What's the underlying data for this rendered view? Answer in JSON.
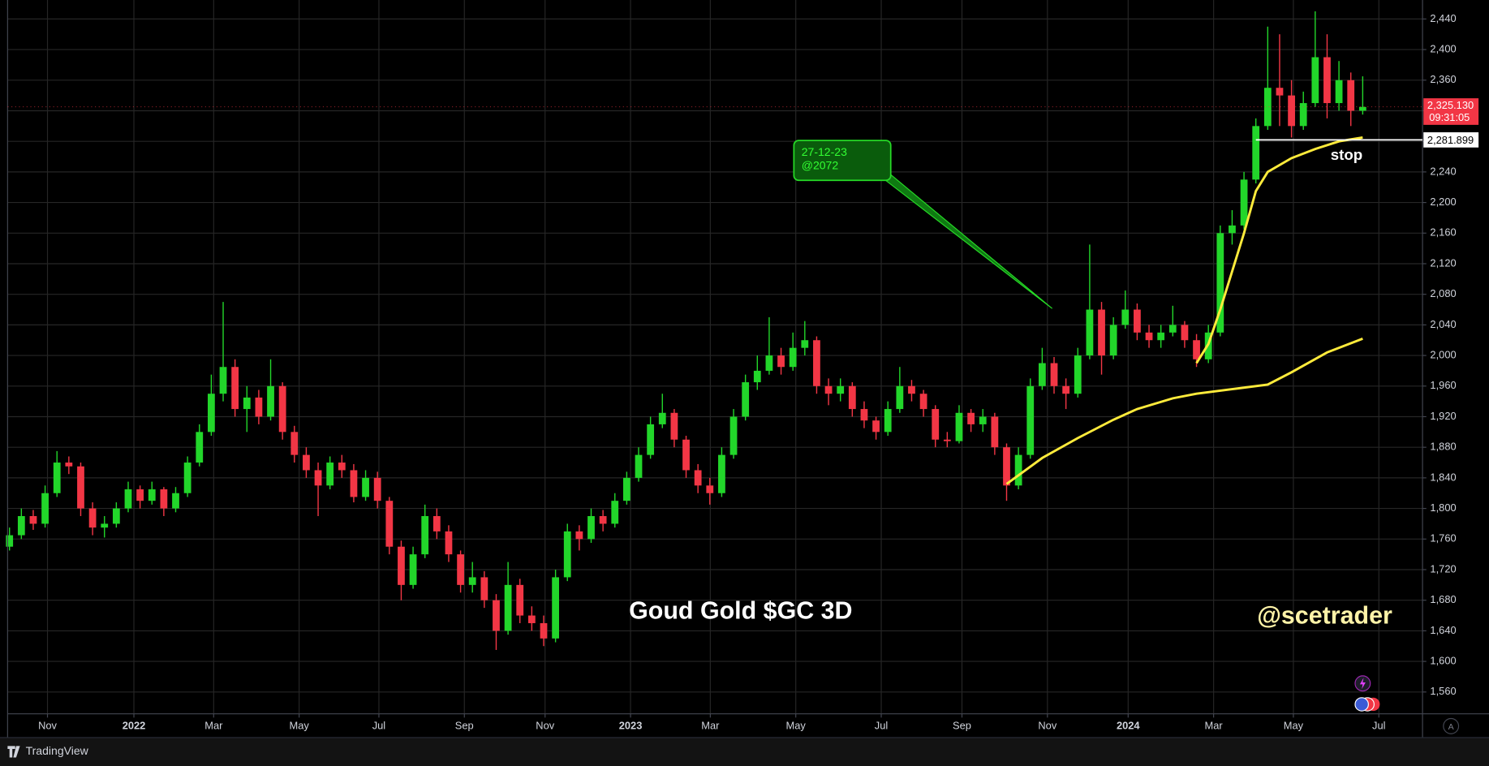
{
  "chart_data": {
    "type": "candlestick",
    "title": "Goud Gold $GC 3D",
    "watermark": "@scetrader",
    "xlim": [
      -0.16,
      119.04
    ],
    "ylim": [
      1531.5,
      2464.8
    ],
    "xticks": [
      {
        "value": 3.2,
        "label": "Nov"
      },
      {
        "value": 10.48,
        "label": "2022"
      },
      {
        "value": 17.2,
        "label": "Mar"
      },
      {
        "value": 24.4,
        "label": "May"
      },
      {
        "value": 31.12,
        "label": "Jul"
      },
      {
        "value": 38.32,
        "label": "Sep"
      },
      {
        "value": 45.12,
        "label": "Nov"
      },
      {
        "value": 52.32,
        "label": "2023"
      },
      {
        "value": 59.04,
        "label": "Mar"
      },
      {
        "value": 66.24,
        "label": "May"
      },
      {
        "value": 73.44,
        "label": "Jul"
      },
      {
        "value": 80.24,
        "label": "Sep"
      },
      {
        "value": 87.44,
        "label": "Nov"
      },
      {
        "value": 94.24,
        "label": "2024"
      },
      {
        "value": 101.44,
        "label": "Mar"
      },
      {
        "value": 108.16,
        "label": "May"
      },
      {
        "value": 115.36,
        "label": "Jul"
      }
    ],
    "yticks": [
      {
        "value": 1560,
        "label": "1,560"
      },
      {
        "value": 1600,
        "label": "1,600"
      },
      {
        "value": 1640,
        "label": "1,640"
      },
      {
        "value": 1680,
        "label": "1,680"
      },
      {
        "value": 1720,
        "label": "1,720"
      },
      {
        "value": 1760,
        "label": "1,760"
      },
      {
        "value": 1800,
        "label": "1,800"
      },
      {
        "value": 1840,
        "label": "1,840"
      },
      {
        "value": 1880,
        "label": "1,880"
      },
      {
        "value": 1920,
        "label": "1,920"
      },
      {
        "value": 1960,
        "label": "1,960"
      },
      {
        "value": 2000,
        "label": "2,000"
      },
      {
        "value": 2040,
        "label": "2,040"
      },
      {
        "value": 2080,
        "label": "2,080"
      },
      {
        "value": 2120,
        "label": "2,120"
      },
      {
        "value": 2160,
        "label": "2,160"
      },
      {
        "value": 2200,
        "label": "2,200"
      },
      {
        "value": 2240,
        "label": "2,240"
      },
      {
        "value": 2280,
        "label": "2,280"
      },
      {
        "value": 2320,
        "label": "2,320"
      },
      {
        "value": 2360,
        "label": "2,360"
      },
      {
        "value": 2400,
        "label": "2,400"
      },
      {
        "value": 2440,
        "label": "2,440"
      }
    ],
    "grid": true,
    "up_color": "#22d62a",
    "down_color": "#f23645",
    "x": [
      0,
      1,
      2,
      3,
      4,
      5,
      6,
      7,
      8,
      9,
      10,
      11,
      12,
      13,
      14,
      15,
      16,
      17,
      18,
      19,
      20,
      21,
      22,
      23,
      24,
      25,
      26,
      27,
      28,
      29,
      30,
      31,
      32,
      33,
      34,
      35,
      36,
      37,
      38,
      39,
      40,
      41,
      42,
      43,
      44,
      45,
      46,
      47,
      48,
      49,
      50,
      51,
      52,
      53,
      54,
      55,
      56,
      57,
      58,
      59,
      60,
      61,
      62,
      63,
      64,
      65,
      66,
      67,
      68,
      69,
      70,
      71,
      72,
      73,
      74,
      75,
      76,
      77,
      78,
      79,
      80,
      81,
      82,
      83,
      84,
      85,
      86,
      87,
      88,
      89,
      90,
      91,
      92,
      93,
      94,
      95,
      96,
      97,
      98,
      99,
      100,
      101,
      102,
      103,
      104,
      105,
      106,
      107,
      108,
      109,
      110,
      111,
      112,
      113,
      114
    ],
    "ohlc": [
      [
        1750,
        1775,
        1745,
        1765
      ],
      [
        1765,
        1800,
        1760,
        1790
      ],
      [
        1790,
        1798,
        1772,
        1780
      ],
      [
        1780,
        1830,
        1775,
        1820
      ],
      [
        1820,
        1875,
        1815,
        1860
      ],
      [
        1860,
        1868,
        1845,
        1855
      ],
      [
        1855,
        1860,
        1790,
        1800
      ],
      [
        1800,
        1808,
        1765,
        1775
      ],
      [
        1775,
        1790,
        1762,
        1780
      ],
      [
        1780,
        1808,
        1775,
        1800
      ],
      [
        1800,
        1835,
        1795,
        1825
      ],
      [
        1825,
        1830,
        1800,
        1810
      ],
      [
        1810,
        1835,
        1805,
        1825
      ],
      [
        1825,
        1828,
        1790,
        1800
      ],
      [
        1800,
        1828,
        1795,
        1820
      ],
      [
        1820,
        1868,
        1815,
        1860
      ],
      [
        1860,
        1910,
        1855,
        1900
      ],
      [
        1900,
        1975,
        1895,
        1950
      ],
      [
        1950,
        2070,
        1940,
        1985
      ],
      [
        1985,
        1995,
        1920,
        1930
      ],
      [
        1930,
        1960,
        1900,
        1945
      ],
      [
        1945,
        1955,
        1910,
        1920
      ],
      [
        1920,
        1995,
        1915,
        1960
      ],
      [
        1960,
        1965,
        1890,
        1900
      ],
      [
        1900,
        1908,
        1860,
        1870
      ],
      [
        1870,
        1880,
        1840,
        1850
      ],
      [
        1850,
        1860,
        1790,
        1830
      ],
      [
        1830,
        1868,
        1825,
        1860
      ],
      [
        1860,
        1870,
        1840,
        1850
      ],
      [
        1850,
        1858,
        1808,
        1815
      ],
      [
        1815,
        1850,
        1810,
        1840
      ],
      [
        1840,
        1848,
        1800,
        1810
      ],
      [
        1810,
        1815,
        1740,
        1750
      ],
      [
        1750,
        1758,
        1680,
        1700
      ],
      [
        1700,
        1750,
        1695,
        1740
      ],
      [
        1740,
        1805,
        1735,
        1790
      ],
      [
        1790,
        1800,
        1760,
        1770
      ],
      [
        1770,
        1778,
        1730,
        1740
      ],
      [
        1740,
        1745,
        1690,
        1700
      ],
      [
        1700,
        1730,
        1690,
        1710
      ],
      [
        1710,
        1718,
        1670,
        1680
      ],
      [
        1680,
        1688,
        1615,
        1640
      ],
      [
        1640,
        1730,
        1635,
        1700
      ],
      [
        1700,
        1708,
        1650,
        1660
      ],
      [
        1660,
        1672,
        1640,
        1650
      ],
      [
        1650,
        1660,
        1620,
        1630
      ],
      [
        1630,
        1720,
        1625,
        1710
      ],
      [
        1710,
        1780,
        1705,
        1770
      ],
      [
        1770,
        1778,
        1745,
        1760
      ],
      [
        1760,
        1800,
        1755,
        1790
      ],
      [
        1790,
        1798,
        1770,
        1780
      ],
      [
        1780,
        1820,
        1775,
        1810
      ],
      [
        1810,
        1848,
        1805,
        1840
      ],
      [
        1840,
        1880,
        1835,
        1870
      ],
      [
        1870,
        1920,
        1865,
        1910
      ],
      [
        1910,
        1950,
        1905,
        1925
      ],
      [
        1925,
        1930,
        1880,
        1890
      ],
      [
        1890,
        1895,
        1840,
        1850
      ],
      [
        1850,
        1858,
        1820,
        1830
      ],
      [
        1830,
        1840,
        1805,
        1820
      ],
      [
        1820,
        1880,
        1815,
        1870
      ],
      [
        1870,
        1930,
        1865,
        1920
      ],
      [
        1920,
        1975,
        1915,
        1965
      ],
      [
        1965,
        2000,
        1955,
        1980
      ],
      [
        1980,
        2050,
        1975,
        2000
      ],
      [
        2000,
        2010,
        1975,
        1985
      ],
      [
        1985,
        2030,
        1980,
        2010
      ],
      [
        2010,
        2045,
        2000,
        2020
      ],
      [
        2020,
        2025,
        1950,
        1960
      ],
      [
        1960,
        1970,
        1935,
        1950
      ],
      [
        1950,
        1970,
        1940,
        1960
      ],
      [
        1960,
        1965,
        1920,
        1930
      ],
      [
        1930,
        1940,
        1905,
        1915
      ],
      [
        1915,
        1920,
        1890,
        1900
      ],
      [
        1900,
        1940,
        1895,
        1930
      ],
      [
        1930,
        1985,
        1925,
        1960
      ],
      [
        1960,
        1968,
        1940,
        1950
      ],
      [
        1950,
        1955,
        1920,
        1930
      ],
      [
        1930,
        1935,
        1880,
        1890
      ],
      [
        1890,
        1900,
        1880,
        1888
      ],
      [
        1888,
        1935,
        1885,
        1925
      ],
      [
        1925,
        1930,
        1900,
        1910
      ],
      [
        1910,
        1930,
        1900,
        1920
      ],
      [
        1920,
        1925,
        1870,
        1880
      ],
      [
        1880,
        1885,
        1810,
        1830
      ],
      [
        1830,
        1880,
        1825,
        1870
      ],
      [
        1870,
        1970,
        1865,
        1960
      ],
      [
        1960,
        2010,
        1955,
        1990
      ],
      [
        1990,
        1998,
        1950,
        1960
      ],
      [
        1960,
        1970,
        1930,
        1950
      ],
      [
        1950,
        2010,
        1945,
        2000
      ],
      [
        2000,
        2145,
        1995,
        2060
      ],
      [
        2060,
        2070,
        1975,
        2000
      ],
      [
        2000,
        2050,
        1995,
        2040
      ],
      [
        2040,
        2085,
        2035,
        2060
      ],
      [
        2060,
        2068,
        2020,
        2030
      ],
      [
        2030,
        2040,
        2010,
        2020
      ],
      [
        2020,
        2040,
        2010,
        2030
      ],
      [
        2030,
        2065,
        2025,
        2040
      ],
      [
        2040,
        2045,
        2010,
        2020
      ],
      [
        2020,
        2028,
        1985,
        1995
      ],
      [
        1995,
        2040,
        1990,
        2030
      ],
      [
        2030,
        2170,
        2025,
        2160
      ],
      [
        2160,
        2190,
        2145,
        2170
      ],
      [
        2170,
        2240,
        2165,
        2230
      ],
      [
        2230,
        2310,
        2225,
        2300
      ],
      [
        2300,
        2430,
        2295,
        2350
      ],
      [
        2350,
        2420,
        2300,
        2340
      ],
      [
        2340,
        2360,
        2285,
        2300
      ],
      [
        2300,
        2345,
        2295,
        2330
      ],
      [
        2330,
        2450,
        2325,
        2390
      ],
      [
        2390,
        2420,
        2310,
        2330
      ],
      [
        2330,
        2385,
        2320,
        2360
      ],
      [
        2360,
        2370,
        2300,
        2320
      ],
      [
        2320,
        2365,
        2315,
        2325
      ]
    ],
    "ma_lines": [
      {
        "color": "#ffeb3b",
        "x": [
          84,
          87,
          90,
          93,
          95,
          98,
          100,
          103,
          106,
          108,
          111,
          114
        ],
        "values": [
          1832,
          1866,
          1892,
          1916,
          1930,
          1944,
          1950,
          1956,
          1962,
          1978,
          2004,
          2022
        ]
      },
      {
        "color": "#ffeb3b",
        "x": [
          100,
          101,
          102,
          103,
          104,
          105,
          106,
          108,
          110,
          112,
          114
        ],
        "values": [
          1990,
          2015,
          2060,
          2110,
          2160,
          2215,
          2240,
          2258,
          2270,
          2280,
          2285
        ]
      }
    ],
    "last_price": {
      "value": 2325.13,
      "label": "2,325.130",
      "countdown": "09:31:05"
    },
    "stop": {
      "value": 2281.899,
      "label": "2,281.899",
      "text": "stop"
    },
    "callout": {
      "lines": [
        "27-12-23",
        "@2072"
      ]
    }
  },
  "footer": {
    "brand": "TradingView",
    "button": "A"
  }
}
